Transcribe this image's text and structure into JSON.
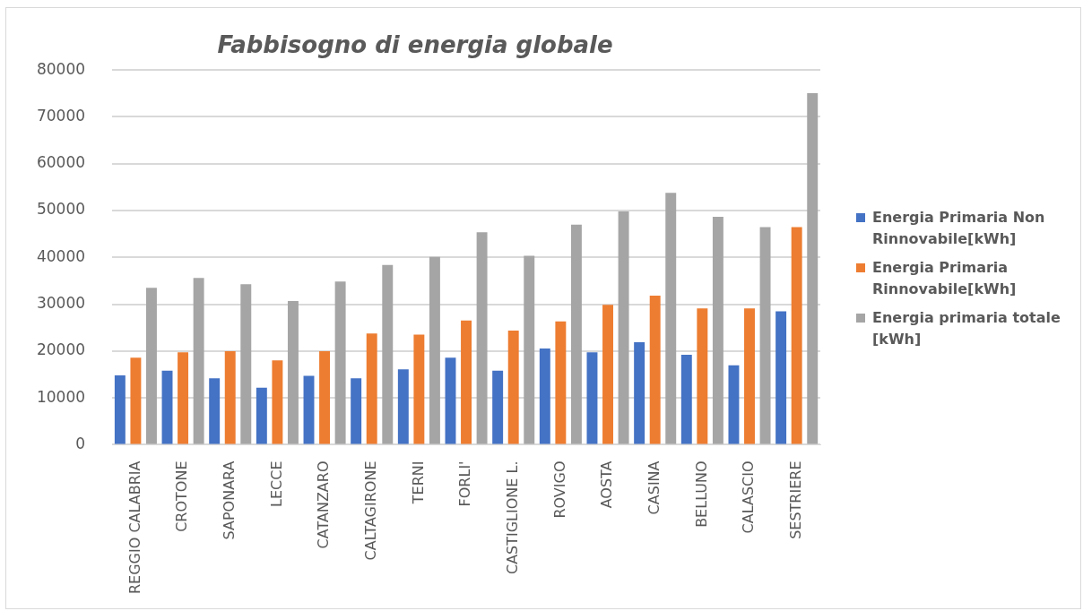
{
  "chart_data": {
    "type": "bar",
    "title": "Fabbisogno di energia globale",
    "categories": [
      "REGGIO CALABRIA",
      "CROTONE",
      "SAPONARA",
      "LECCE",
      "CATANZARO",
      "CALTAGIRONE",
      "TERNI",
      "FORLI'",
      "CASTIGLIONE L.",
      "ROVIGO",
      "AOSTA",
      "CASINA",
      "BELLUNO",
      "CALASCIO",
      "SESTRIERE"
    ],
    "series": [
      {
        "name": "Energia Primaria Non Rinnovabile[kWh]",
        "color": "#4472c4",
        "values": [
          14800,
          15800,
          14200,
          12200,
          14700,
          14200,
          16100,
          18600,
          15800,
          20550,
          19750,
          21900,
          19200,
          16950,
          28500
        ]
      },
      {
        "name": "Energia Primaria Rinnovabile[kWh]",
        "color": "#ed7d31",
        "values": [
          18600,
          19750,
          20000,
          18000,
          20000,
          23750,
          23500,
          26550,
          24400,
          26350,
          29900,
          31850,
          29100,
          29100,
          46450
        ]
      },
      {
        "name": "Energia primaria totale [kWh]",
        "color": "#a5a5a5",
        "values": [
          33500,
          35600,
          34300,
          30700,
          34850,
          38400,
          40100,
          45350,
          40350,
          47000,
          49800,
          53800,
          48650,
          46450,
          75050
        ]
      }
    ],
    "ylim": [
      0,
      80000
    ],
    "yticks": [
      0,
      10000,
      20000,
      30000,
      40000,
      50000,
      60000,
      70000,
      80000
    ],
    "grid": "y",
    "legend": "right"
  }
}
